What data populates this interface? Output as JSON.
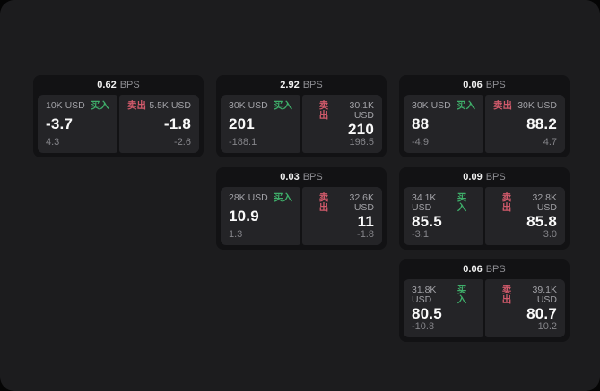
{
  "theme": {
    "outer_bg": "#050505",
    "page_bg": "#1c1c1e",
    "card_bg": "#121214",
    "tile_bg": "#242427",
    "text_primary": "#fafafa",
    "text_secondary": "#a2a2a7",
    "text_muted": "#85858a",
    "buy_color": "#3fae6a",
    "sell_color": "#d15a6b"
  },
  "labels": {
    "bps": "BPS",
    "buy": "买入",
    "sell": "卖出"
  },
  "cards": [
    {
      "bps": "0.62",
      "row": 1,
      "col": 1,
      "buy": {
        "amount": "10K USD",
        "value": "-3.7",
        "delta": "4.3"
      },
      "sell": {
        "amount": "5.5K USD",
        "value": "-1.8",
        "delta": "-2.6"
      }
    },
    {
      "bps": "2.92",
      "row": 1,
      "col": 2,
      "buy": {
        "amount": "30K USD",
        "value": "201",
        "delta": "-188.1"
      },
      "sell": {
        "amount": "30.1K USD",
        "value": "210",
        "delta": "196.5"
      }
    },
    {
      "bps": "0.06",
      "row": 1,
      "col": 3,
      "buy": {
        "amount": "30K USD",
        "value": "88",
        "delta": "-4.9"
      },
      "sell": {
        "amount": "30K USD",
        "value": "88.2",
        "delta": "4.7"
      }
    },
    {
      "bps": "0.03",
      "row": 2,
      "col": 2,
      "buy": {
        "amount": "28K USD",
        "value": "10.9",
        "delta": "1.3"
      },
      "sell": {
        "amount": "32.6K USD",
        "value": "11",
        "delta": "-1.8"
      }
    },
    {
      "bps": "0.09",
      "row": 2,
      "col": 3,
      "buy": {
        "amount": "34.1K USD",
        "value": "85.5",
        "delta": "-3.1"
      },
      "sell": {
        "amount": "32.8K USD",
        "value": "85.8",
        "delta": "3.0"
      }
    },
    {
      "bps": "0.06",
      "row": 3,
      "col": 3,
      "buy": {
        "amount": "31.8K USD",
        "value": "80.5",
        "delta": "-10.8"
      },
      "sell": {
        "amount": "39.1K USD",
        "value": "80.7",
        "delta": "10.2"
      }
    }
  ]
}
